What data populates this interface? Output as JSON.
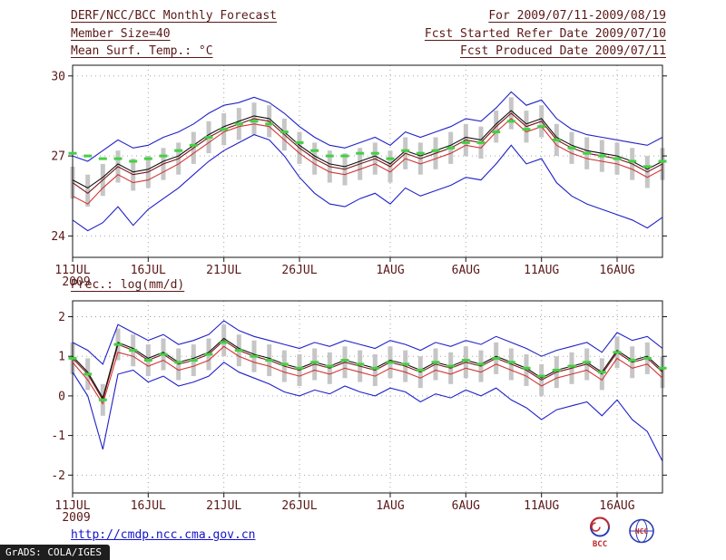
{
  "header": {
    "title": "DERF/NCC/BCC Monthly Forecast",
    "member_size": "Member Size=40",
    "variable_temp": "Mean Surf. Temp.: °C",
    "for_range": "For 2009/07/11-2009/08/19",
    "refer_date": "Fcst Started Refer Date 2009/07/10",
    "produced_date": "Fcst Produced Date 2009/07/11"
  },
  "panel2_label": "Prec.: log(mm/d)",
  "footer": {
    "url": "http://cmdp.ncc.cma.gov.cn",
    "grads_credit": "GrADS: COLA/IGES",
    "bcc_label": "BCC",
    "ncc_label": "NCC"
  },
  "colors": {
    "text": "#5a1818",
    "url_blue": "#1414cc",
    "envelope_blue": "#2020c8",
    "mean_black": "#101010",
    "median_darkred": "#7c1414",
    "control_red": "#d43434",
    "obs_green": "#44cf44",
    "spread_gray": "#c6c6c6",
    "grid_gray": "#9a9a9a",
    "logo_blue": "#2a3db0",
    "logo_red": "#c32929"
  },
  "chart_data": [
    {
      "type": "line",
      "name": "mean-surface-temperature",
      "title": "Mean Surf. Temp.: °C",
      "xlabel": "",
      "ylabel": "°C",
      "ylim": [
        23.2,
        30.4
      ],
      "yticks": [
        24,
        27,
        30
      ],
      "grid": "dotted",
      "n": 40,
      "x_tick_labels": [
        "11JUL",
        "16JUL",
        "21JUL",
        "26JUL",
        "1AUG",
        "6AUG",
        "11AUG",
        "16AUG"
      ],
      "x_tick_positions": [
        0,
        5,
        10,
        15,
        21,
        26,
        31,
        36
      ],
      "year_label": "2009",
      "band": {
        "name": "ensemble-spread-bar",
        "color": "#c6c6c6",
        "low": [
          25.4,
          25.1,
          25.5,
          26.0,
          25.7,
          25.8,
          26.1,
          26.3,
          26.7,
          27.1,
          27.4,
          27.6,
          27.8,
          27.7,
          27.2,
          26.7,
          26.3,
          26.0,
          25.9,
          26.1,
          26.3,
          26.0,
          26.5,
          26.3,
          26.5,
          26.7,
          27.0,
          26.9,
          27.5,
          28.0,
          27.5,
          27.7,
          27.0,
          26.7,
          26.5,
          26.4,
          26.3,
          26.1,
          25.8,
          26.1
        ],
        "high": [
          26.6,
          26.3,
          26.7,
          27.2,
          26.9,
          27.0,
          27.3,
          27.5,
          27.9,
          28.3,
          28.6,
          28.8,
          29.0,
          28.9,
          28.4,
          27.9,
          27.5,
          27.2,
          27.1,
          27.3,
          27.5,
          27.2,
          27.7,
          27.5,
          27.7,
          27.9,
          28.2,
          28.1,
          28.7,
          29.2,
          28.7,
          28.9,
          28.2,
          27.9,
          27.7,
          27.6,
          27.5,
          27.3,
          27.0,
          27.3
        ]
      },
      "series": [
        {
          "name": "ensemble-max",
          "color": "#2020c8",
          "values": [
            27.0,
            26.8,
            27.2,
            27.6,
            27.3,
            27.4,
            27.7,
            27.9,
            28.2,
            28.6,
            28.9,
            29.0,
            29.2,
            29.0,
            28.6,
            28.1,
            27.7,
            27.4,
            27.3,
            27.5,
            27.7,
            27.4,
            27.9,
            27.7,
            27.9,
            28.1,
            28.4,
            28.3,
            28.8,
            29.4,
            28.9,
            29.1,
            28.4,
            28.0,
            27.8,
            27.7,
            27.6,
            27.5,
            27.4,
            27.7
          ]
        },
        {
          "name": "ensemble-min",
          "color": "#2020c8",
          "values": [
            24.6,
            24.2,
            24.5,
            25.1,
            24.4,
            25.0,
            25.4,
            25.8,
            26.3,
            26.8,
            27.2,
            27.5,
            27.8,
            27.6,
            27.0,
            26.2,
            25.6,
            25.2,
            25.1,
            25.4,
            25.6,
            25.2,
            25.8,
            25.5,
            25.7,
            25.9,
            26.2,
            26.1,
            26.7,
            27.4,
            26.7,
            26.9,
            26.0,
            25.5,
            25.2,
            25.0,
            24.8,
            24.6,
            24.3,
            24.7
          ]
        },
        {
          "name": "control-run",
          "color": "#d43434",
          "values": [
            25.5,
            25.2,
            25.8,
            26.3,
            26.0,
            26.1,
            26.4,
            26.7,
            27.1,
            27.5,
            27.9,
            28.1,
            28.2,
            28.1,
            27.6,
            27.1,
            26.7,
            26.4,
            26.3,
            26.5,
            26.7,
            26.4,
            26.9,
            26.7,
            26.9,
            27.1,
            27.4,
            27.3,
            27.9,
            28.4,
            27.9,
            28.1,
            27.4,
            27.1,
            26.9,
            26.8,
            26.7,
            26.5,
            26.2,
            26.5
          ]
        },
        {
          "name": "ensemble-median",
          "color": "#7c1414",
          "values": [
            26.0,
            25.6,
            26.1,
            26.6,
            26.3,
            26.4,
            26.7,
            26.9,
            27.3,
            27.7,
            28.0,
            28.2,
            28.4,
            28.3,
            27.8,
            27.3,
            26.9,
            26.6,
            26.5,
            26.7,
            26.9,
            26.6,
            27.1,
            26.9,
            27.1,
            27.3,
            27.6,
            27.5,
            28.1,
            28.6,
            28.1,
            28.3,
            27.6,
            27.3,
            27.1,
            27.0,
            26.9,
            26.7,
            26.4,
            26.7
          ]
        },
        {
          "name": "ensemble-mean",
          "color": "#101010",
          "values": [
            26.1,
            25.8,
            26.2,
            26.7,
            26.4,
            26.5,
            26.8,
            27.0,
            27.4,
            27.8,
            28.1,
            28.3,
            28.5,
            28.4,
            27.9,
            27.4,
            27.0,
            26.7,
            26.6,
            26.8,
            27.0,
            26.7,
            27.2,
            27.0,
            27.2,
            27.4,
            27.7,
            27.6,
            28.2,
            28.7,
            28.2,
            28.4,
            27.7,
            27.4,
            27.2,
            27.1,
            27.0,
            26.8,
            26.5,
            26.8
          ]
        }
      ],
      "markers": {
        "name": "observation-dash",
        "color": "#44cf44",
        "values": [
          27.1,
          27.0,
          26.9,
          26.9,
          26.8,
          26.9,
          27.0,
          27.2,
          27.4,
          27.7,
          28.0,
          28.2,
          28.3,
          28.2,
          27.9,
          27.5,
          27.2,
          27.0,
          27.0,
          27.1,
          27.1,
          26.9,
          27.2,
          27.1,
          27.2,
          27.3,
          27.5,
          27.5,
          27.9,
          28.3,
          28.0,
          28.1,
          27.6,
          27.3,
          27.1,
          27.0,
          26.9,
          26.8,
          26.6,
          26.8
        ]
      }
    },
    {
      "type": "line",
      "name": "precipitation-log",
      "title": "Prec.: log(mm/d)",
      "xlabel": "",
      "ylabel": "log(mm/d)",
      "ylim": [
        -2.45,
        2.4
      ],
      "yticks": [
        -2,
        -1,
        0,
        1,
        2
      ],
      "grid": "dotted",
      "n": 40,
      "x_tick_labels": [
        "11JUL",
        "16JUL",
        "21JUL",
        "26JUL",
        "1AUG",
        "6AUG",
        "11AUG",
        "16AUG"
      ],
      "x_tick_positions": [
        0,
        5,
        10,
        15,
        21,
        26,
        31,
        36
      ],
      "year_label": "2009",
      "band": {
        "name": "ensemble-spread-bar",
        "color": "#c6c6c6",
        "low": [
          0.55,
          0.15,
          -0.5,
          0.9,
          0.75,
          0.5,
          0.65,
          0.4,
          0.5,
          0.65,
          1.0,
          0.75,
          0.6,
          0.5,
          0.35,
          0.25,
          0.4,
          0.3,
          0.45,
          0.35,
          0.25,
          0.45,
          0.35,
          0.2,
          0.4,
          0.3,
          0.45,
          0.35,
          0.55,
          0.4,
          0.25,
          0.0,
          0.2,
          0.3,
          0.4,
          0.15,
          0.7,
          0.45,
          0.55,
          0.2
        ],
        "high": [
          1.35,
          0.95,
          0.3,
          1.7,
          1.55,
          1.3,
          1.45,
          1.2,
          1.3,
          1.45,
          1.8,
          1.55,
          1.4,
          1.3,
          1.15,
          1.05,
          1.2,
          1.1,
          1.25,
          1.15,
          1.05,
          1.25,
          1.15,
          1.0,
          1.2,
          1.1,
          1.25,
          1.15,
          1.35,
          1.2,
          1.05,
          0.8,
          1.0,
          1.1,
          1.2,
          0.95,
          1.5,
          1.25,
          1.35,
          1.0
        ]
      },
      "series": [
        {
          "name": "ensemble-max",
          "color": "#2020c8",
          "values": [
            1.35,
            1.15,
            0.8,
            1.8,
            1.6,
            1.4,
            1.55,
            1.3,
            1.4,
            1.55,
            1.9,
            1.65,
            1.5,
            1.4,
            1.3,
            1.2,
            1.35,
            1.25,
            1.4,
            1.3,
            1.2,
            1.4,
            1.3,
            1.15,
            1.35,
            1.25,
            1.4,
            1.3,
            1.5,
            1.35,
            1.2,
            1.0,
            1.15,
            1.25,
            1.35,
            1.1,
            1.6,
            1.4,
            1.5,
            1.2
          ]
        },
        {
          "name": "ensemble-min",
          "color": "#2020c8",
          "values": [
            0.6,
            0.0,
            -1.35,
            0.55,
            0.65,
            0.35,
            0.5,
            0.25,
            0.35,
            0.5,
            0.85,
            0.6,
            0.45,
            0.3,
            0.1,
            0.0,
            0.15,
            0.05,
            0.25,
            0.1,
            0.0,
            0.2,
            0.1,
            -0.15,
            0.05,
            -0.05,
            0.15,
            0.0,
            0.2,
            -0.1,
            -0.3,
            -0.6,
            -0.35,
            -0.25,
            -0.15,
            -0.5,
            -0.1,
            -0.6,
            -0.9,
            -1.65
          ]
        },
        {
          "name": "control-run",
          "color": "#d43434",
          "values": [
            0.85,
            0.4,
            -0.2,
            1.1,
            1.0,
            0.75,
            0.9,
            0.65,
            0.75,
            0.9,
            1.25,
            1.0,
            0.85,
            0.75,
            0.6,
            0.5,
            0.65,
            0.55,
            0.7,
            0.6,
            0.5,
            0.7,
            0.6,
            0.45,
            0.65,
            0.55,
            0.7,
            0.6,
            0.8,
            0.65,
            0.5,
            0.25,
            0.45,
            0.55,
            0.65,
            0.4,
            0.95,
            0.7,
            0.8,
            0.45
          ]
        },
        {
          "name": "ensemble-median",
          "color": "#7c1414",
          "values": [
            0.95,
            0.55,
            -0.1,
            1.3,
            1.15,
            0.9,
            1.05,
            0.8,
            0.9,
            1.05,
            1.4,
            1.15,
            1.0,
            0.9,
            0.75,
            0.65,
            0.8,
            0.7,
            0.85,
            0.75,
            0.65,
            0.85,
            0.75,
            0.6,
            0.8,
            0.7,
            0.85,
            0.75,
            0.95,
            0.8,
            0.65,
            0.4,
            0.6,
            0.7,
            0.8,
            0.55,
            1.1,
            0.85,
            0.95,
            0.6
          ]
        },
        {
          "name": "ensemble-mean",
          "color": "#101010",
          "values": [
            1.0,
            0.6,
            -0.05,
            1.35,
            1.2,
            0.95,
            1.1,
            0.85,
            0.95,
            1.1,
            1.45,
            1.2,
            1.05,
            0.95,
            0.8,
            0.7,
            0.85,
            0.75,
            0.9,
            0.8,
            0.7,
            0.9,
            0.8,
            0.65,
            0.85,
            0.75,
            0.9,
            0.8,
            1.0,
            0.85,
            0.7,
            0.45,
            0.65,
            0.75,
            0.85,
            0.6,
            1.15,
            0.9,
            1.0,
            0.65
          ]
        }
      ],
      "markers": {
        "name": "observation-dash",
        "color": "#44cf44",
        "values": [
          0.95,
          0.55,
          -0.1,
          1.3,
          1.15,
          0.9,
          1.05,
          0.85,
          0.9,
          1.05,
          1.35,
          1.15,
          1.0,
          0.9,
          0.8,
          0.7,
          0.85,
          0.75,
          0.9,
          0.8,
          0.7,
          0.85,
          0.8,
          0.65,
          0.85,
          0.75,
          0.9,
          0.8,
          0.95,
          0.85,
          0.7,
          0.5,
          0.65,
          0.75,
          0.85,
          0.6,
          1.1,
          0.9,
          0.95,
          0.7
        ]
      }
    }
  ]
}
